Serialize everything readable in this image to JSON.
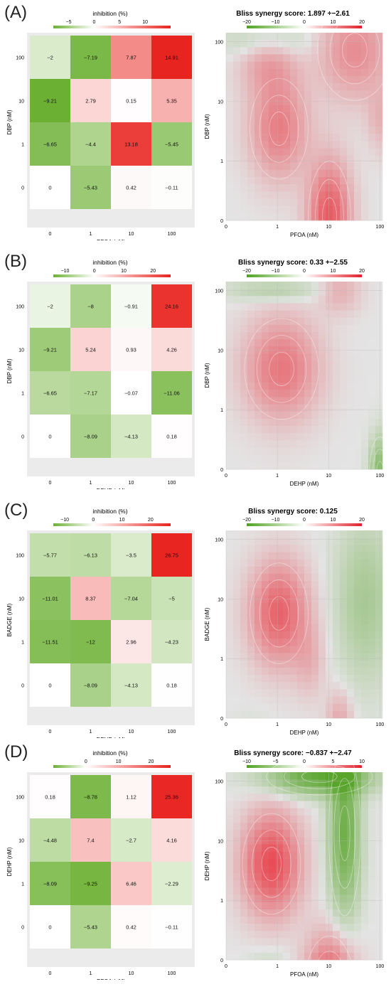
{
  "colors": {
    "positive": "#e8231f",
    "negative": "#6bb032",
    "neutral": "#ffffff",
    "panel_bg": "#ebebeb",
    "grid_bg": "#d8d8d8"
  },
  "chart_data": [
    {
      "panel": "(A)",
      "type": "heatmap",
      "legend_title": "inhibition (%)",
      "legend_ticks": [
        "−5",
        "0",
        "5",
        "10"
      ],
      "legend_range": [
        -8,
        15
      ],
      "xlabel": "PFOA (nM)",
      "ylabel": "DBP (nM)",
      "x_categories": [
        "0",
        "1",
        "10",
        "100"
      ],
      "y_categories": [
        "0",
        "1",
        "10",
        "100"
      ],
      "values_top_to_bottom": [
        [
          "−2",
          "−7.19",
          "7.87",
          "14.91"
        ],
        [
          "−9.21",
          "2.79",
          "0.15",
          "5.35"
        ],
        [
          "−6.65",
          "−4.4",
          "13.18",
          "−5.45"
        ],
        [
          "0",
          "−5.43",
          "0.42",
          "−0.11"
        ]
      ],
      "synergy": {
        "type": "heatmap",
        "title": "Bliss synergy score: 1.897 +−2.61",
        "legend_ticks": [
          "−20",
          "−10",
          "0",
          "10",
          "20"
        ],
        "xlabel": "PFOA (nM)",
        "ylabel": "DBP (nM)",
        "x_ticks": [
          "0",
          "1",
          "10",
          "100"
        ],
        "y_ticks": [
          "0",
          "1",
          "10",
          "100"
        ]
      }
    },
    {
      "panel": "(B)",
      "type": "heatmap",
      "legend_title": "inhibition (%)",
      "legend_ticks": [
        "−10",
        "0",
        "10",
        "20"
      ],
      "legend_range": [
        -14,
        26
      ],
      "xlabel": "DEHP (nM)",
      "ylabel": "DBP (nM)",
      "x_categories": [
        "0",
        "1",
        "10",
        "100"
      ],
      "y_categories": [
        "0",
        "1",
        "10",
        "100"
      ],
      "values_top_to_bottom": [
        [
          "−2",
          "−8",
          "−0.91",
          "24.16"
        ],
        [
          "−9.21",
          "5.24",
          "0.93",
          "4.26"
        ],
        [
          "−6.65",
          "−7.17",
          "−0.07",
          "−11.06"
        ],
        [
          "0",
          "−8.09",
          "−4.13",
          "0.18"
        ]
      ],
      "synergy": {
        "type": "heatmap",
        "title": "Bliss synergy score: 0.33 +−2.55",
        "legend_ticks": [
          "−20",
          "−10",
          "0",
          "10",
          "20"
        ],
        "xlabel": "DEHP (nM)",
        "ylabel": "DBP (nM)",
        "x_ticks": [
          "0",
          "1",
          "10",
          "100"
        ],
        "y_ticks": [
          "0",
          "1",
          "10",
          "100"
        ]
      }
    },
    {
      "panel": "(C)",
      "type": "heatmap",
      "legend_title": "inhibition (%)",
      "legend_ticks": [
        "−10",
        "0",
        "10",
        "20"
      ],
      "legend_range": [
        -14,
        27
      ],
      "xlabel": "DEHP (nM)",
      "ylabel": "BADGE (nM)",
      "x_categories": [
        "0",
        "1",
        "10",
        "100"
      ],
      "y_categories": [
        "0",
        "1",
        "10",
        "100"
      ],
      "values_top_to_bottom": [
        [
          "−5.77",
          "−6.13",
          "−3.5",
          "26.75"
        ],
        [
          "−11.01",
          "8.37",
          "−7.04",
          "−5"
        ],
        [
          "−11.51",
          "−12",
          "2.96",
          "−4.23"
        ],
        [
          "0",
          "−8.09",
          "−4.13",
          "0.18"
        ]
      ],
      "synergy": {
        "type": "heatmap",
        "title": "Bliss synergy score: 0.125",
        "legend_ticks": [
          "−20",
          "−10",
          "0",
          "10",
          "20"
        ],
        "xlabel": "DEHP (nM)",
        "ylabel": "BADGE (nM)",
        "x_ticks": [
          "0",
          "1",
          "10",
          "100"
        ],
        "y_ticks": [
          "0",
          "1",
          "10",
          "100"
        ]
      }
    },
    {
      "panel": "(D)",
      "type": "heatmap",
      "legend_title": "inhibition (%)",
      "legend_ticks": [
        "0",
        "10",
        "20"
      ],
      "legend_range": [
        -10,
        26
      ],
      "xlabel": "PFOA (nM)",
      "ylabel": "DEHP (nM)",
      "x_categories": [
        "0",
        "1",
        "10",
        "100"
      ],
      "y_categories": [
        "0",
        "1",
        "10",
        "100"
      ],
      "values_top_to_bottom": [
        [
          "0.18",
          "−8.78",
          "1.12",
          "25.36"
        ],
        [
          "−4.48",
          "7.4",
          "−2.7",
          "4.16"
        ],
        [
          "−8.09",
          "−9.25",
          "6.46",
          "−2.29"
        ],
        [
          "0",
          "−5.43",
          "0.42",
          "−0.11"
        ]
      ],
      "synergy": {
        "type": "heatmap",
        "title": "Bliss synergy score: −0.837 +−2.47",
        "legend_ticks": [
          "−10",
          "−5",
          "0",
          "5",
          "10"
        ],
        "xlabel": "PFOA (nM)",
        "ylabel": "DEHP (nM)",
        "x_ticks": [
          "0",
          "1",
          "10",
          "100"
        ],
        "y_ticks": [
          "0",
          "1",
          "10",
          "100"
        ]
      }
    }
  ]
}
